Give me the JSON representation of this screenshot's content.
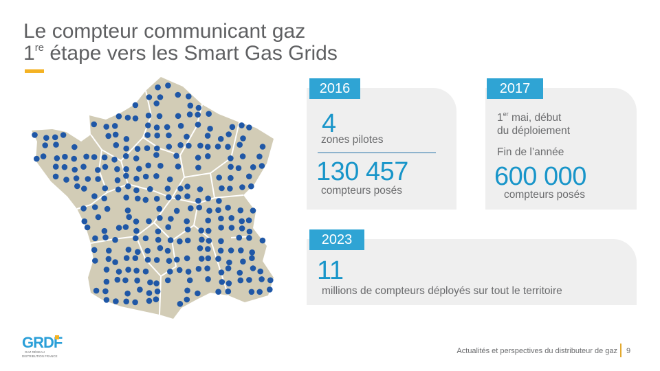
{
  "title": {
    "line1": "Le compteur communicant gaz",
    "line2_prefix": "1",
    "line2_sup": "re",
    "line2_rest": " étape vers les Smart Gas Grids"
  },
  "p2016": {
    "year": "2016",
    "zones_value": "4",
    "zones_label": "zones pilotes",
    "meters_value": "130 457",
    "meters_label": "compteurs posés"
  },
  "p2017": {
    "year": "2017",
    "line1_prefix": "1",
    "line1_sup": "er",
    "line1_rest": " mai, début",
    "line2": "du déploiement",
    "line3": "Fin de l’année",
    "meters_value": "600 000",
    "meters_label": "compteurs posés"
  },
  "p2023": {
    "year": "2023",
    "value": "11",
    "label": "millions de compteurs déployés sur tout le territoire"
  },
  "logo": {
    "text": "GRDF",
    "subline1": "GAZ RÉSEAU",
    "subline2": "DISTRIBUTION FRANCE"
  },
  "footer": {
    "text": "Actualités et perspectives du distributeur de gaz",
    "page": "9"
  },
  "colors": {
    "accent_blue": "#1895c9",
    "year_badge": "#2fa4d4",
    "accent_yellow": "#f4b223",
    "map_fill": "#d2ccb6",
    "dot": "#1f57a6"
  }
}
